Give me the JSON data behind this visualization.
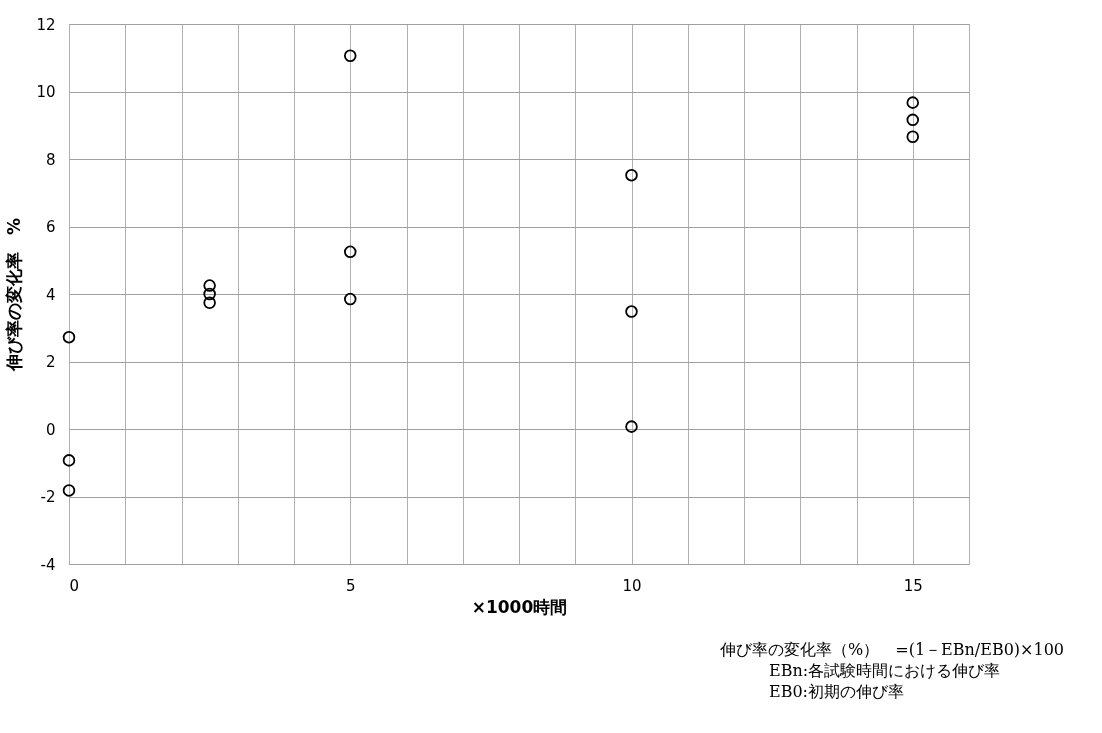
{
  "chart_data": {
    "type": "scatter",
    "xlabel": "×1000時間",
    "ylabel": "伸び率の変化率　%",
    "x": [
      0,
      0,
      0,
      2.5,
      2.5,
      2.5,
      5,
      5,
      5,
      10,
      10,
      10,
      15,
      15,
      15
    ],
    "series": [
      {
        "color": "#000000",
        "values": [
          2.72,
          -0.93,
          -1.82,
          4.25,
          4.0,
          3.74,
          11.06,
          5.25,
          3.85,
          7.52,
          3.48,
          0.07,
          9.67,
          9.16,
          8.66
        ]
      }
    ],
    "xlim": [
      0,
      16
    ],
    "xticks": [
      0,
      {
        "value": 1,
        "label": null
      },
      {
        "value": 2,
        "label": null
      },
      {
        "value": 3,
        "label": null
      },
      {
        "value": 4,
        "label": null
      },
      5,
      {
        "value": 6,
        "label": null
      },
      {
        "value": 7,
        "label": null
      },
      {
        "value": 8,
        "label": null
      },
      {
        "value": 9,
        "label": null
      },
      10,
      {
        "value": 11,
        "label": null
      },
      {
        "value": 12,
        "label": null
      },
      {
        "value": 13,
        "label": null
      },
      {
        "value": 14,
        "label": null
      },
      15,
      {
        "value": 16,
        "label": null
      }
    ],
    "ylim": [
      -4,
      12
    ],
    "yticks": [
      -4,
      -2,
      0,
      2,
      4,
      6,
      8,
      10,
      12
    ],
    "grid": true,
    "legend": false,
    "marker": "circle",
    "annotations": [
      "伸び率の変化率（%）　=(1－EBn/EB0)×100",
      "EBn:各試験時間における伸び率",
      "EB0:初期の伸び率"
    ]
  }
}
